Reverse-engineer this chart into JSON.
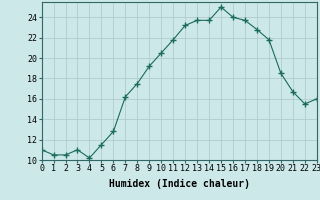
{
  "x": [
    0,
    1,
    2,
    3,
    4,
    5,
    6,
    7,
    8,
    9,
    10,
    11,
    12,
    13,
    14,
    15,
    16,
    17,
    18,
    19,
    20,
    21,
    22,
    23
  ],
  "y": [
    11.0,
    10.5,
    10.5,
    11.0,
    10.2,
    11.5,
    12.8,
    16.2,
    17.5,
    19.2,
    20.5,
    21.8,
    23.2,
    23.7,
    23.7,
    25.0,
    24.0,
    23.7,
    22.8,
    21.8,
    18.5,
    16.7,
    15.5,
    16.0
  ],
  "line_color": "#1a6b5a",
  "marker": "+",
  "marker_size": 4,
  "bg_color": "#cce8e8",
  "grid_color": "#b0cccc",
  "xlabel": "Humidex (Indice chaleur)",
  "ylim": [
    10,
    25.5
  ],
  "xlim": [
    0,
    23
  ],
  "yticks": [
    10,
    12,
    14,
    16,
    18,
    20,
    22,
    24
  ],
  "xticks": [
    0,
    1,
    2,
    3,
    4,
    5,
    6,
    7,
    8,
    9,
    10,
    11,
    12,
    13,
    14,
    15,
    16,
    17,
    18,
    19,
    20,
    21,
    22,
    23
  ],
  "xtick_labels": [
    "0",
    "1",
    "2",
    "3",
    "4",
    "5",
    "6",
    "7",
    "8",
    "9",
    "10",
    "11",
    "12",
    "13",
    "14",
    "15",
    "16",
    "17",
    "18",
    "19",
    "20",
    "21",
    "22",
    "23"
  ],
  "font_size": 6,
  "xlabel_font_size": 7
}
